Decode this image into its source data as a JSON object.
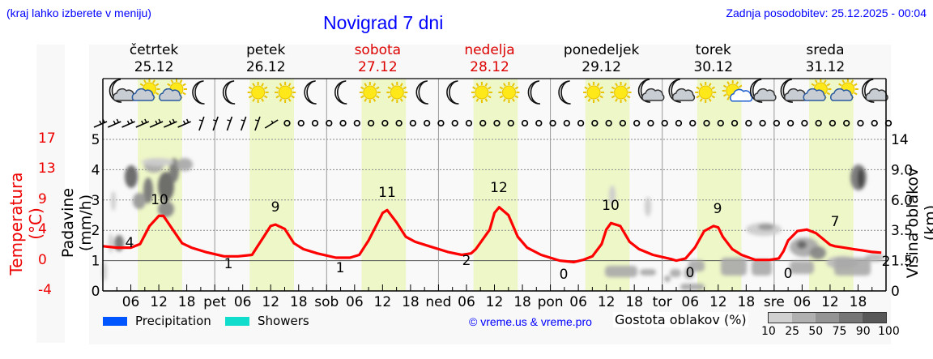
{
  "header": {
    "region_hint": "(kraj lahko izberete v meniju)",
    "title": "Novigrad 7 dni",
    "last_update": "Zadnja posodobitev: 25.12.2025 - 00:04"
  },
  "days": [
    {
      "name": "četrtek",
      "date": "25.12",
      "weekend": false
    },
    {
      "name": "petek",
      "date": "26.12",
      "weekend": false
    },
    {
      "name": "sobota",
      "date": "27.12",
      "weekend": true
    },
    {
      "name": "nedelja",
      "date": "28.12",
      "weekend": true
    },
    {
      "name": "ponedeljek",
      "date": "29.12",
      "weekend": false
    },
    {
      "name": "torek",
      "date": "30.12",
      "weekend": false
    },
    {
      "name": "sreda",
      "date": "31.12",
      "weekend": false
    }
  ],
  "weather_icons": [
    [
      "moon-cloud",
      "sun-cloud",
      "sun-cloud",
      "moon"
    ],
    [
      "moon",
      "sun",
      "sun",
      "moon"
    ],
    [
      "moon",
      "sun",
      "sun",
      "moon"
    ],
    [
      "moon",
      "sun",
      "sun",
      "moon"
    ],
    [
      "moon",
      "sun",
      "sun",
      "moon-cloud"
    ],
    [
      "moon-cloud",
      "sun",
      "sun-small-cloud",
      "moon-cloud"
    ],
    [
      "moon-cloud",
      "sun-cloud",
      "sun-cloud",
      "moon-cloud"
    ]
  ],
  "axes": {
    "left_temp_title": "Temperatura (°C)",
    "left_temp_ticks": [
      "17",
      "13",
      "9",
      "4",
      "0",
      "-4"
    ],
    "left_precip_title": "Padavine (mm/h)",
    "left_precip_ticks": [
      "5",
      "4",
      "3",
      "2",
      "1",
      "0"
    ],
    "right_title": "Višina oblakov (km)",
    "right_ticks": [
      "14",
      "9.0",
      "6.0",
      "3.5",
      "1.5",
      "0"
    ],
    "x_ticks": [
      "06",
      "12",
      "18",
      "pet",
      "06",
      "12",
      "18",
      "sob",
      "06",
      "12",
      "18",
      "ned",
      "06",
      "12",
      "18",
      "pon",
      "06",
      "12",
      "18",
      "tor",
      "06",
      "12",
      "18",
      "sre",
      "06",
      "12",
      "18"
    ]
  },
  "legend": {
    "precipitation": {
      "label": "Precipitation",
      "color": "#0055ff"
    },
    "showers": {
      "label": "Showers",
      "color": "#11ddcc"
    },
    "credit": "© vreme.us & vreme.pro",
    "density_title": "Gostota oblakov (%)",
    "density_scale": [
      "10",
      "25",
      "50",
      "75",
      "90",
      "100"
    ],
    "density_colors": [
      "#d0d0d0",
      "#b0b0b0",
      "#949494",
      "#767676",
      "#585858"
    ]
  },
  "colors": {
    "temperature_line": "#ff0000",
    "daylight_band": "#eef7c8",
    "title_blue": "#0000ff",
    "weekend_red": "#dd0000"
  },
  "chart_data": {
    "type": "line",
    "title": "Novigrad 7 dni",
    "xlabel": "",
    "ylabel": "Temperatura (°C)",
    "ylim": [
      -4,
      17
    ],
    "series": [
      {
        "name": "Temperatura (°C)",
        "x_hours": [
          0,
          3,
          6,
          8,
          10,
          12,
          13,
          15,
          17,
          19,
          22,
          26,
          29,
          32,
          33,
          35,
          36,
          37,
          39,
          41,
          43,
          46,
          50,
          53,
          55,
          57,
          59,
          60,
          61,
          63,
          65,
          67,
          70,
          74,
          77,
          79,
          80,
          83,
          84,
          85,
          87,
          89,
          91,
          94,
          98,
          101,
          103,
          105,
          107,
          108,
          109,
          111,
          113,
          115,
          118,
          122,
          123,
          125,
          127,
          129,
          131,
          132,
          133,
          135,
          137,
          140,
          143,
          145,
          146,
          147,
          149,
          151,
          153,
          156,
          157,
          159,
          161,
          163,
          165,
          167
        ],
        "values": [
          2.2,
          2.0,
          2.0,
          2.5,
          5.0,
          6.4,
          6.4,
          4.5,
          2.6,
          2.0,
          1.4,
          0.8,
          0.8,
          1.0,
          2.0,
          4.0,
          5.0,
          5.2,
          4.6,
          2.6,
          1.8,
          1.2,
          0.6,
          0.6,
          1.0,
          3.0,
          5.5,
          6.8,
          7.2,
          5.5,
          3.5,
          2.8,
          2.2,
          1.4,
          1.0,
          1.2,
          1.8,
          4.5,
          6.8,
          7.6,
          6.5,
          3.5,
          2.0,
          1.0,
          0.2,
          0.0,
          0.3,
          0.8,
          2.5,
          4.5,
          5.4,
          5.0,
          2.8,
          1.8,
          1.0,
          0.4,
          0.2,
          0.5,
          2.0,
          4.3,
          5.0,
          4.8,
          3.5,
          1.8,
          1.0,
          0.3,
          0.3,
          0.5,
          1.5,
          3.0,
          4.3,
          4.5,
          4.0,
          2.4,
          2.2,
          2.0,
          1.8,
          1.6,
          1.4,
          1.3
        ]
      }
    ],
    "annotations": {
      "daily_max": [
        10,
        9,
        11,
        12,
        10,
        9,
        7
      ],
      "daily_min": [
        4,
        1,
        1,
        2,
        0,
        0,
        0,
        2
      ]
    },
    "precipitation_axis": {
      "label": "Padavine (mm/h)",
      "range": [
        0,
        5
      ],
      "values": "none"
    },
    "cloud_height_axis": {
      "label": "Višina oblakov (km)",
      "ticks": [
        0,
        1.5,
        3.5,
        6.0,
        9.0,
        14
      ]
    },
    "x_categories": [
      "četrtek 25.12",
      "petek 26.12",
      "sobota 27.12",
      "nedelja 28.12",
      "ponedeljek 29.12",
      "torek 30.12",
      "sreda 31.12"
    ],
    "grid": true,
    "legend_position": "bottom"
  }
}
